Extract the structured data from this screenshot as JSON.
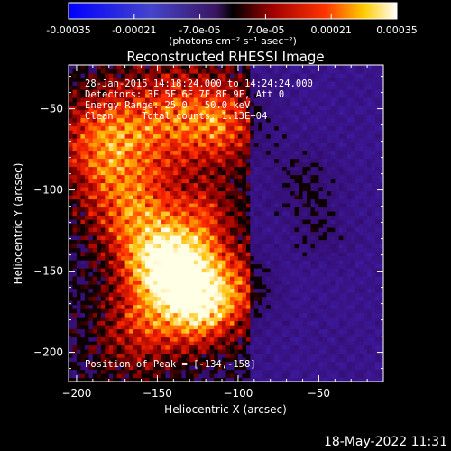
{
  "chart_data": {
    "type": "heatmap",
    "title": "Reconstructed RHESSI Image",
    "xlabel": "Heliocentric X (arcsec)",
    "ylabel": "Heliocentric Y (arcsec)",
    "xlim": [
      -205,
      -10
    ],
    "ylim": [
      -218,
      -23
    ],
    "xticks": [
      -200,
      -150,
      -100,
      -50
    ],
    "yticks": [
      -50,
      -100,
      -150,
      -200
    ],
    "colorbar": {
      "ticks": [
        "-0.00035",
        "-0.00021",
        "-7.0e-05",
        "7.0e-05",
        "0.00021",
        "0.00035"
      ],
      "range": [
        -0.00035,
        0.00035
      ],
      "units_label": "(photons cm⁻² s⁻¹ asec⁻²)"
    },
    "annotations": {
      "line1": "28-Jan-2015 14:18:24.000 to 14:24:24.000",
      "line2": "Detectors: 3F 5F 6F 7F 8F 9F, Att 0",
      "line3": "Energy Range: 25.0 - 50.0 keV",
      "line4": "Clean     Total counts: 1.13E+04",
      "peak": "Position of Peak = [-134,-158]"
    },
    "peak": {
      "x": -134,
      "y": -158
    }
  },
  "footer": {
    "date": "18-May-2022 11:31"
  }
}
